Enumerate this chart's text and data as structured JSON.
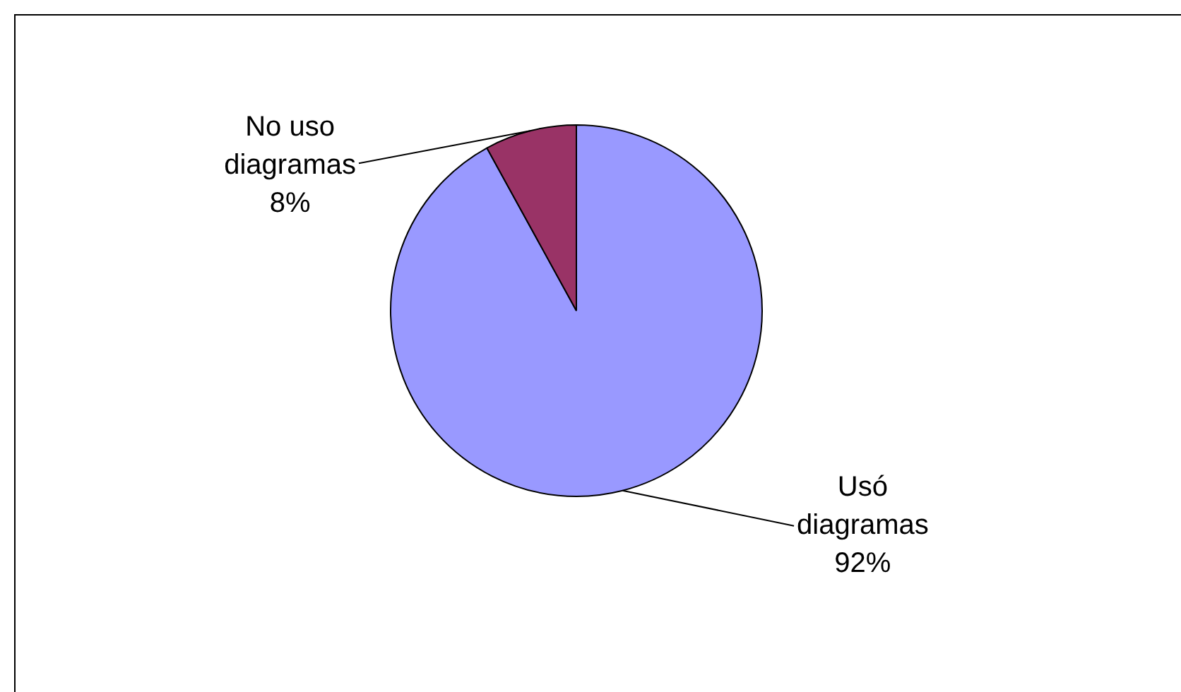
{
  "chart_data": {
    "type": "pie",
    "categories": [
      "Usó diagramas",
      "No uso diagramas"
    ],
    "values": [
      92,
      8
    ],
    "colors": [
      "#9999ff",
      "#993366"
    ],
    "value_labels": [
      "92%",
      "8%"
    ],
    "legend": false
  }
}
